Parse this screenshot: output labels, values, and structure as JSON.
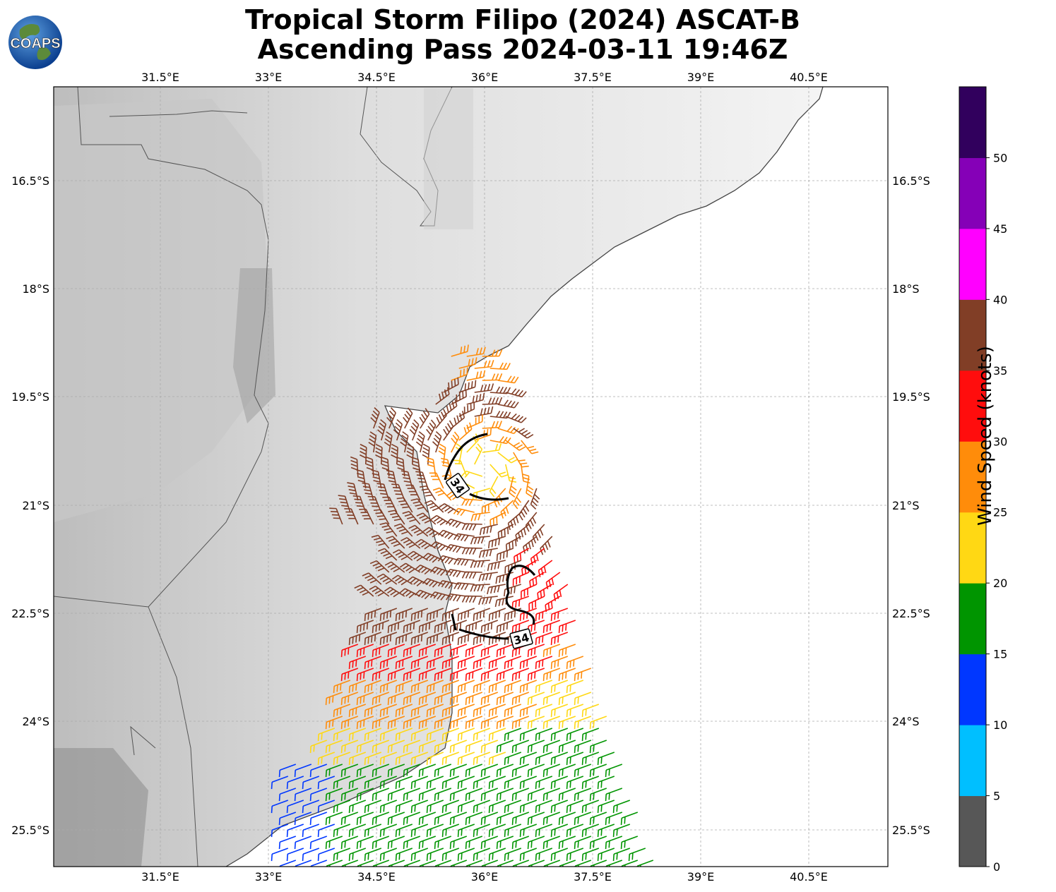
{
  "title_line1": "Tropical Storm Filipo (2024) ASCAT-B",
  "title_line2": "Ascending Pass 2024-03-11 19:46Z",
  "logo_text": "COAPS",
  "lon_ticks": [
    "31.5°E",
    "33°E",
    "34.5°E",
    "36°E",
    "37.5°E",
    "39°E",
    "40.5°E"
  ],
  "lat_ticks": [
    "16.5°S",
    "18°S",
    "19.5°S",
    "21°S",
    "22.5°S",
    "24°S",
    "25.5°S"
  ],
  "colorbar": {
    "label": "Wind Speed (knots)",
    "ticks": [
      "0",
      "5",
      "10",
      "15",
      "20",
      "25",
      "30",
      "35",
      "40",
      "45",
      "50"
    ],
    "colors": [
      "#575757",
      "#00bfff",
      "#0037ff",
      "#009500",
      "#ffd814",
      "#ff8c0a",
      "#ff0d0d",
      "#813e26",
      "#ff00ff",
      "#8500b7",
      "#31005d"
    ]
  },
  "contour_labels": [
    "34",
    "34"
  ],
  "colors": {
    "coast": "#444444",
    "grid": "#aaaaaa",
    "contour": "#000000"
  }
}
